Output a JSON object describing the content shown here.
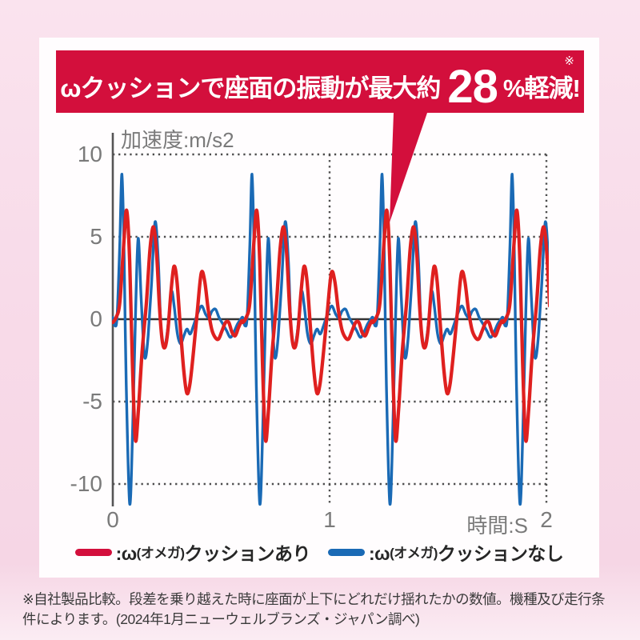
{
  "banner": {
    "text_before": "ωクッションで座面の振動が最大約",
    "highlight_number": "28",
    "text_after": "%軽減!",
    "note_mark": "※",
    "bg_color": "#d30f3c"
  },
  "chart_data": {
    "type": "line",
    "title": "加速度:m/s2",
    "xlabel": "時間:S",
    "xlim": [
      0,
      2
    ],
    "ylim": [
      -11.5,
      10
    ],
    "x_ticks": [
      0,
      1,
      2
    ],
    "y_ticks": [
      10,
      5,
      0,
      -5,
      -10
    ],
    "grid": "dotted",
    "x_unit": "seconds",
    "repeat_offsets": [
      0,
      0.6,
      1.2,
      1.8
    ],
    "series": [
      {
        "id": "with-cushion",
        "name": "ω(オメガ)クッションあり",
        "color": "#df201f",
        "template": [
          [
            0.0,
            -0.2
          ],
          [
            0.015,
            0.1
          ],
          [
            0.032,
            1.0
          ],
          [
            0.05,
            4.5
          ],
          [
            0.064,
            6.6
          ],
          [
            0.078,
            3.5
          ],
          [
            0.09,
            -2.5
          ],
          [
            0.104,
            -7.3
          ],
          [
            0.118,
            -5.5
          ],
          [
            0.135,
            -2.0
          ],
          [
            0.155,
            1.0
          ],
          [
            0.172,
            4.3
          ],
          [
            0.188,
            5.6
          ],
          [
            0.202,
            4.0
          ],
          [
            0.215,
            0.8
          ],
          [
            0.228,
            -1.3
          ],
          [
            0.241,
            -1.7
          ],
          [
            0.254,
            -0.7
          ],
          [
            0.268,
            1.6
          ],
          [
            0.282,
            3.2
          ],
          [
            0.296,
            2.3
          ],
          [
            0.312,
            -0.6
          ],
          [
            0.328,
            -3.2
          ],
          [
            0.342,
            -4.5
          ],
          [
            0.356,
            -3.9
          ],
          [
            0.372,
            -2.0
          ],
          [
            0.39,
            0.5
          ],
          [
            0.408,
            2.8
          ],
          [
            0.424,
            2.3
          ],
          [
            0.44,
            0.6
          ],
          [
            0.456,
            -0.6
          ],
          [
            0.472,
            -1.1
          ],
          [
            0.488,
            -1.2
          ],
          [
            0.504,
            -0.7
          ],
          [
            0.52,
            -0.2
          ],
          [
            0.535,
            -0.2
          ],
          [
            0.55,
            -0.8
          ],
          [
            0.565,
            -1.0
          ],
          [
            0.58,
            -0.5
          ],
          [
            0.595,
            -0.1
          ]
        ]
      },
      {
        "id": "without-cushion",
        "name": "ω(オメガ)クッションなし",
        "color": "#1a6ab5",
        "template": [
          [
            0.0,
            0.1
          ],
          [
            0.01,
            -0.4
          ],
          [
            0.02,
            0.2
          ],
          [
            0.032,
            4.5
          ],
          [
            0.042,
            8.8
          ],
          [
            0.052,
            4.0
          ],
          [
            0.062,
            -4.0
          ],
          [
            0.078,
            -11.2
          ],
          [
            0.092,
            -6.5
          ],
          [
            0.105,
            0.5
          ],
          [
            0.117,
            4.9
          ],
          [
            0.13,
            1.5
          ],
          [
            0.143,
            -1.8
          ],
          [
            0.152,
            -2.3
          ],
          [
            0.163,
            -1.0
          ],
          [
            0.178,
            2.0
          ],
          [
            0.195,
            5.9
          ],
          [
            0.21,
            3.5
          ],
          [
            0.222,
            -0.5
          ],
          [
            0.237,
            -1.7
          ],
          [
            0.25,
            -0.9
          ],
          [
            0.262,
            0.6
          ],
          [
            0.272,
            1.7
          ],
          [
            0.283,
            0.8
          ],
          [
            0.298,
            -0.9
          ],
          [
            0.313,
            -1.5
          ],
          [
            0.328,
            -1.0
          ],
          [
            0.342,
            -0.6
          ],
          [
            0.357,
            -0.9
          ],
          [
            0.372,
            -0.4
          ],
          [
            0.39,
            0.3
          ],
          [
            0.41,
            0.8
          ],
          [
            0.428,
            0.3
          ],
          [
            0.443,
            0.1
          ],
          [
            0.458,
            0.5
          ],
          [
            0.474,
            0.6
          ],
          [
            0.49,
            0.1
          ],
          [
            0.508,
            -0.3
          ],
          [
            0.525,
            -0.7
          ],
          [
            0.542,
            -1.1
          ],
          [
            0.558,
            -0.8
          ],
          [
            0.575,
            -0.3
          ],
          [
            0.59,
            0.0
          ]
        ]
      }
    ]
  },
  "legend": {
    "items": [
      {
        "pre": ":ω",
        "small": "(オメガ)",
        "post": "クッションあり",
        "color": "#d30f3c"
      },
      {
        "pre": ":ω",
        "small": "(オメガ)",
        "post": "クッションなし",
        "color": "#1a6ab5"
      }
    ]
  },
  "footnote": {
    "lines": [
      "※自社製品比較。段差を乗り越えた時に座面が上下にどれだけ揺れたかの数値。機種及び走行条",
      "件によります。(2024年1月ニューウェルブランズ・ジャパン調べ)"
    ]
  }
}
